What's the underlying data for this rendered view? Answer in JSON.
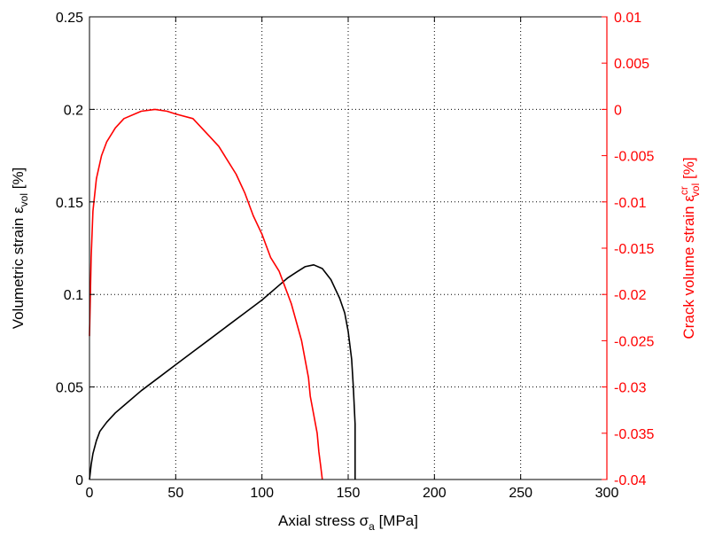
{
  "chart_data": {
    "type": "line",
    "title": "",
    "xlabel": "Axial stress σ",
    "xlabel_sub": "a",
    "xlabel_tail": " [MPa]",
    "ylabel": "Volumetric strain ε",
    "ylabel_sub": "vol",
    "ylabel_tail": " [%]",
    "y2label": "Crack volume strain ε",
    "y2label_sup": "cr",
    "y2label_sub": "vol",
    "y2label_tail": " [%]",
    "xlim": [
      0,
      300
    ],
    "ylim": [
      0,
      0.25
    ],
    "y2lim": [
      -0.04,
      0.01
    ],
    "grid": true,
    "x_ticks": [
      "0",
      "50",
      "100",
      "150",
      "200",
      "250",
      "300"
    ],
    "y_ticks": [
      "0",
      "0.05",
      "0.1",
      "0.15",
      "0.2",
      "0.25"
    ],
    "y2_ticks": [
      "-0.04",
      "-0.035",
      "-0.03",
      "-0.025",
      "-0.02",
      "-0.015",
      "-0.01",
      "-0.005",
      "0",
      "0.005",
      "0.01"
    ],
    "colors": {
      "left_axis": "#000000",
      "right_axis": "#ff0000",
      "grid": "#000000"
    },
    "series": [
      {
        "axis": "left",
        "color": "#000000",
        "values": [
          [
            0,
            0
          ],
          [
            1,
            0.008
          ],
          [
            2,
            0.014
          ],
          [
            4,
            0.021
          ],
          [
            6,
            0.026
          ],
          [
            10,
            0.031
          ],
          [
            15,
            0.036
          ],
          [
            20,
            0.04
          ],
          [
            30,
            0.048
          ],
          [
            40,
            0.055
          ],
          [
            50,
            0.062
          ],
          [
            60,
            0.069
          ],
          [
            70,
            0.076
          ],
          [
            80,
            0.083
          ],
          [
            90,
            0.09
          ],
          [
            100,
            0.097
          ],
          [
            110,
            0.105
          ],
          [
            115,
            0.109
          ],
          [
            120,
            0.112
          ],
          [
            125,
            0.115
          ],
          [
            130,
            0.116
          ],
          [
            135,
            0.114
          ],
          [
            140,
            0.108
          ],
          [
            145,
            0.098
          ],
          [
            148,
            0.09
          ],
          [
            150,
            0.08
          ],
          [
            152,
            0.065
          ],
          [
            153,
            0.05
          ],
          [
            154,
            0.03
          ],
          [
            154,
            0.015
          ],
          [
            154,
            0
          ]
        ]
      },
      {
        "axis": "right",
        "color": "#ff0000",
        "values": [
          [
            0,
            -0.0245
          ],
          [
            1,
            -0.016
          ],
          [
            2,
            -0.011
          ],
          [
            4,
            -0.0075
          ],
          [
            7,
            -0.005
          ],
          [
            10,
            -0.0035
          ],
          [
            15,
            -0.002
          ],
          [
            20,
            -0.001
          ],
          [
            30,
            -0.0002
          ],
          [
            38,
            0
          ],
          [
            45,
            -0.0002
          ],
          [
            50,
            -0.0005
          ],
          [
            60,
            -0.001
          ],
          [
            70,
            -0.003
          ],
          [
            75,
            -0.004
          ],
          [
            80,
            -0.0055
          ],
          [
            85,
            -0.007
          ],
          [
            90,
            -0.009
          ],
          [
            95,
            -0.0115
          ],
          [
            100,
            -0.0135
          ],
          [
            105,
            -0.016
          ],
          [
            110,
            -0.0175
          ],
          [
            113,
            -0.019
          ],
          [
            117,
            -0.021
          ],
          [
            120,
            -0.023
          ],
          [
            123,
            -0.025
          ],
          [
            125,
            -0.027
          ],
          [
            127,
            -0.029
          ],
          [
            128,
            -0.031
          ],
          [
            130,
            -0.033
          ],
          [
            132,
            -0.035
          ],
          [
            133,
            -0.037
          ],
          [
            134,
            -0.0385
          ],
          [
            135,
            -0.04
          ]
        ]
      }
    ]
  }
}
